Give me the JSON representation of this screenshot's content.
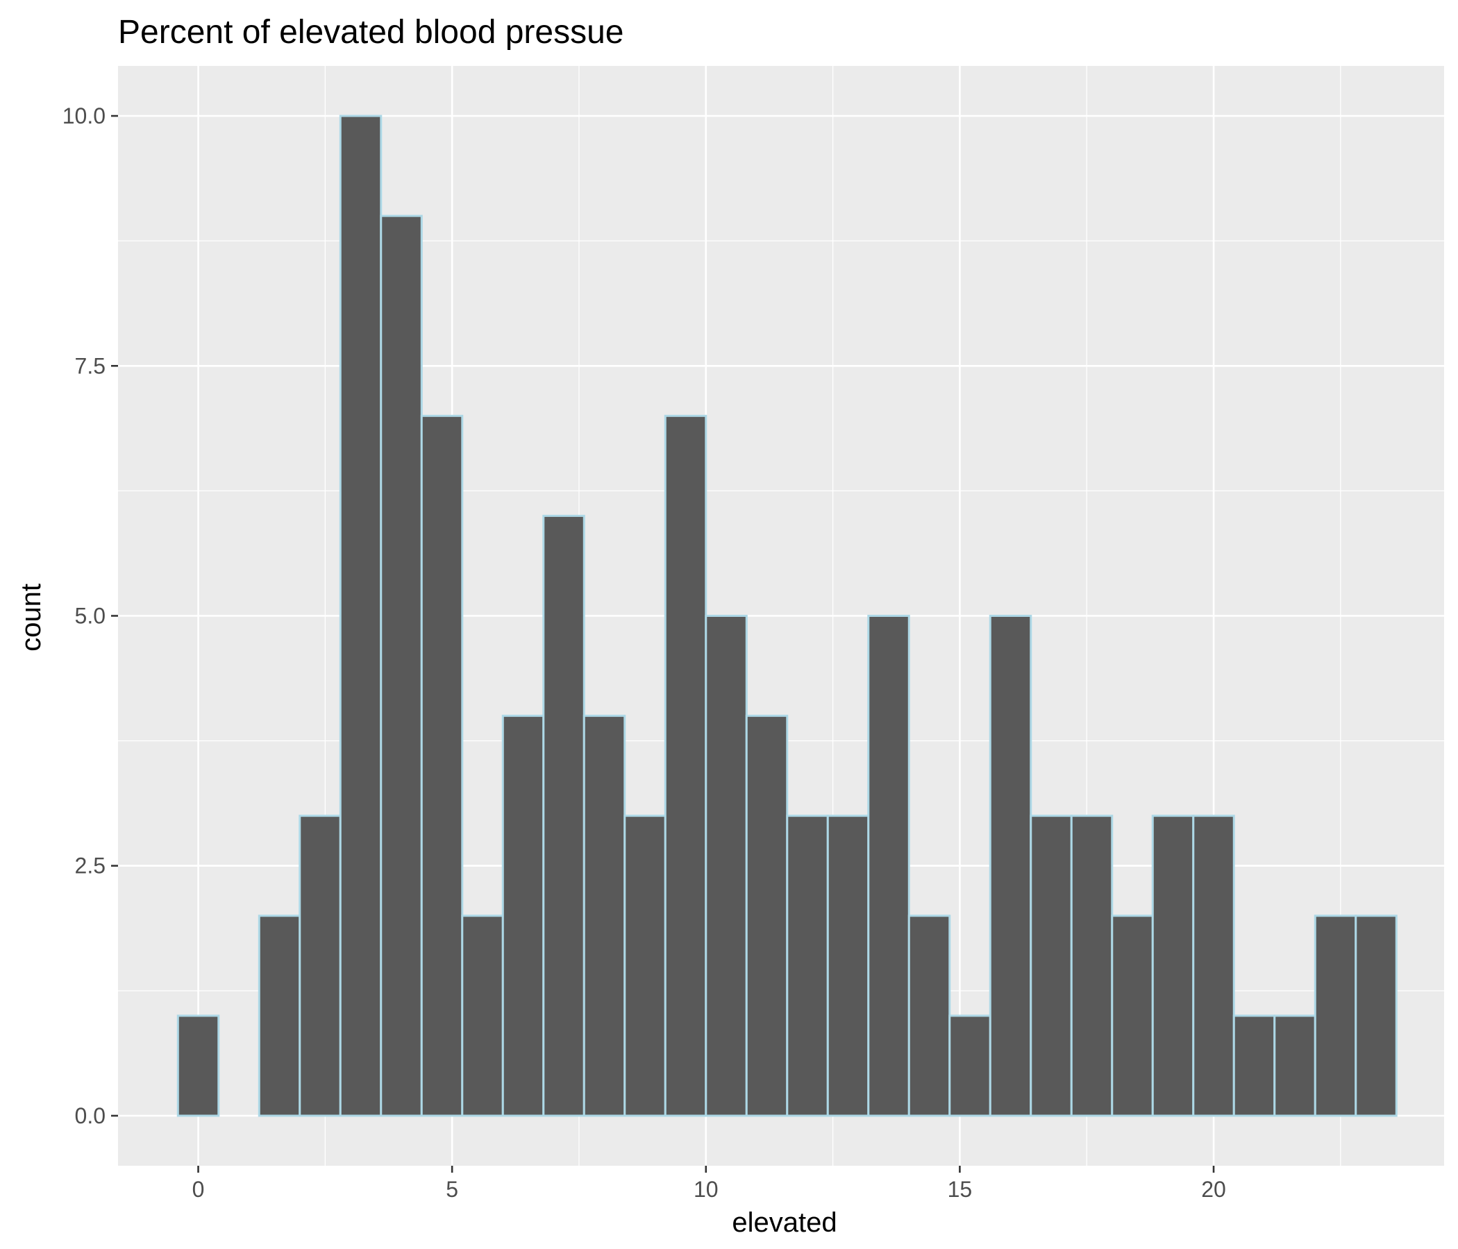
{
  "chart_data": {
    "type": "bar",
    "title": "Percent of elevated blood pressue",
    "xlabel": "elevated",
    "ylabel": "count",
    "xlim": [
      -1.58,
      24.54
    ],
    "ylim": [
      -0.5,
      10.5
    ],
    "x_ticks": [
      0,
      5,
      10,
      15,
      20
    ],
    "x_tick_labels": [
      "0",
      "5",
      "10",
      "15",
      "20"
    ],
    "y_ticks": [
      0,
      2.5,
      5,
      7.5,
      10
    ],
    "y_tick_labels": [
      "0.0",
      "2.5",
      "5.0",
      "7.5",
      "10.0"
    ],
    "grid": true,
    "bin_width": 0.8,
    "bins_start": -0.4,
    "values": [
      1,
      0,
      2,
      3,
      10,
      9,
      7,
      2,
      4,
      6,
      4,
      3,
      7,
      5,
      4,
      3,
      3,
      5,
      2,
      1,
      5,
      3,
      3,
      2,
      3,
      3,
      1,
      1,
      2,
      2
    ],
    "colors": {
      "panel": "#EBEBEB",
      "grid": "#FFFFFF",
      "bar_fill": "#595959",
      "bar_outline": "#ADD8E6",
      "text": "#000000",
      "tick_text": "#4D4D4D",
      "tick_mark": "#333333"
    }
  }
}
